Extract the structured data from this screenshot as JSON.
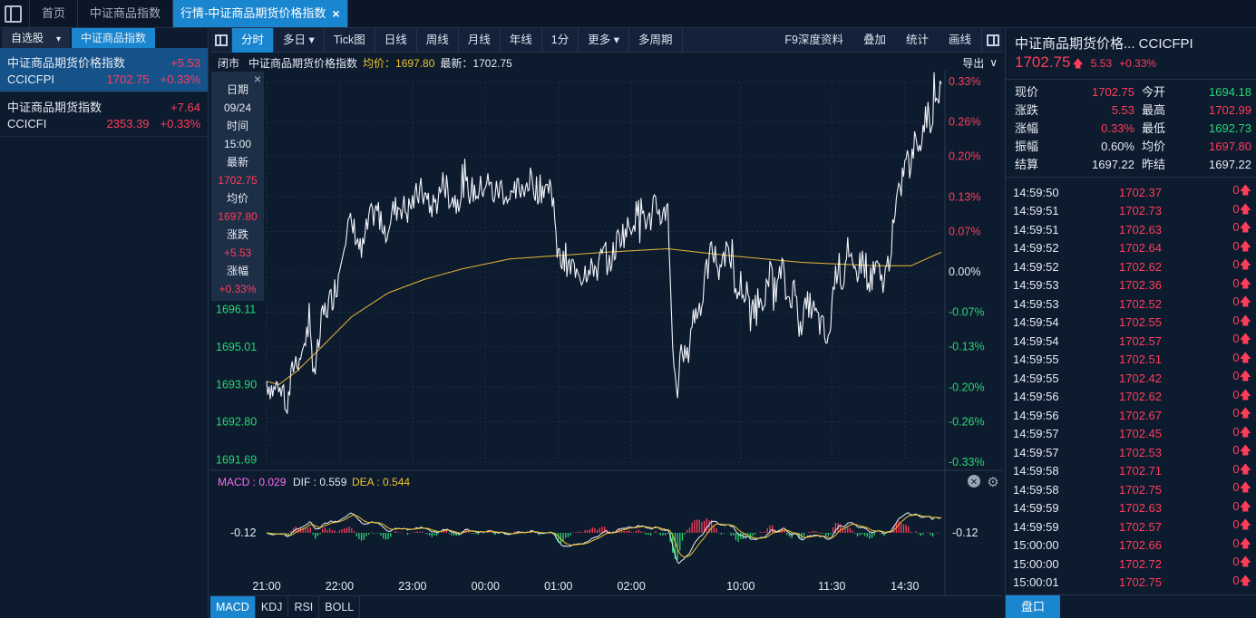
{
  "top_tabs": [
    {
      "label": "首页"
    },
    {
      "label": "中证商品指数"
    },
    {
      "label": "行情-中证商品期货价格指数",
      "close": "×"
    }
  ],
  "left": {
    "tabs": [
      "自选股",
      "中证商品指数"
    ],
    "dropdown": "▾",
    "items": [
      {
        "name": "中证商品期货价格指数",
        "change": "+5.53",
        "code": "CCICFPI",
        "price": "1702.75",
        "pct": "+0.33%"
      },
      {
        "name": "中证商品期货指数",
        "change": "+7.64",
        "code": "CCICFI",
        "price": "2353.39",
        "pct": "+0.33%"
      }
    ]
  },
  "toolbar": {
    "buttons": [
      "分时",
      "多日 ▾",
      "Tick图",
      "日线",
      "周线",
      "月线",
      "年线",
      "1分",
      "更多 ▾",
      "多周期"
    ],
    "right": [
      "F9深度资料",
      "叠加",
      "统计",
      "画线"
    ]
  },
  "infoline": {
    "status": "闭市",
    "name": "中证商品期货价格指数",
    "avg_label": "均价：1697.80",
    "last_label": "最新：1702.75",
    "export": "导出",
    "export_icon": "∨"
  },
  "tooltip": {
    "close": "×",
    "rows": [
      {
        "label": "日期",
        "value": "09/24",
        "cls": "wht"
      },
      {
        "label": "时间",
        "value": "15:00",
        "cls": "wht"
      },
      {
        "label": "最新",
        "value": "1702.75",
        "cls": "up"
      },
      {
        "label": "均价",
        "value": "1697.80",
        "cls": "up"
      },
      {
        "label": "涨跌",
        "value": "+5.53",
        "cls": "up"
      },
      {
        "label": "涨幅",
        "value": "+0.33%",
        "cls": "up"
      }
    ]
  },
  "chart_data": {
    "type": "line",
    "title": "",
    "prev_close": 1697.22,
    "left_axis_ticks": [
      {
        "label": "1696.11",
        "value": 1696.11
      },
      {
        "label": "1695.01",
        "value": 1695.01
      },
      {
        "label": "1693.90",
        "value": 1693.9
      },
      {
        "label": "1692.80",
        "value": 1692.8
      },
      {
        "label": "1691.69",
        "value": 1691.69
      }
    ],
    "right_axis_ticks": [
      {
        "label": "0.33%",
        "value": 0.33
      },
      {
        "label": "0.26%",
        "value": 0.26
      },
      {
        "label": "0.20%",
        "value": 0.2
      },
      {
        "label": "0.13%",
        "value": 0.13
      },
      {
        "label": "0.07%",
        "value": 0.07
      },
      {
        "label": "0.00%",
        "value": 0
      },
      {
        "label": "-0.07%",
        "value": -0.07
      },
      {
        "label": "-0.13%",
        "value": -0.13
      },
      {
        "label": "-0.20%",
        "value": -0.2
      },
      {
        "label": "-0.26%",
        "value": -0.26
      },
      {
        "label": "-0.33%",
        "value": -0.33
      }
    ],
    "x_ticks": [
      "21:00",
      "22:00",
      "23:00",
      "00:00",
      "01:00",
      "02:00",
      "10:00",
      "11:30",
      "14:30"
    ],
    "x_tick_index": [
      0,
      60,
      120,
      180,
      240,
      300,
      390,
      465,
      525
    ],
    "n_points": 556,
    "ylim_pct": [
      -0.33,
      0.33
    ],
    "price_keys": [
      [
        0,
        1694.0
      ],
      [
        6,
        1693.7
      ],
      [
        12,
        1694.1
      ],
      [
        17,
        1693.2
      ],
      [
        22,
        1694.5
      ],
      [
        28,
        1694.8
      ],
      [
        34,
        1695.5
      ],
      [
        40,
        1694.3
      ],
      [
        46,
        1695.9
      ],
      [
        53,
        1696.4
      ],
      [
        58,
        1696.9
      ],
      [
        61,
        1697.6
      ],
      [
        63,
        1698.2
      ],
      [
        68,
        1698.6
      ],
      [
        73,
        1698.4
      ],
      [
        78,
        1697.7
      ],
      [
        84,
        1698.7
      ],
      [
        91,
        1699.0
      ],
      [
        98,
        1698.5
      ],
      [
        104,
        1699.0
      ],
      [
        110,
        1699.2
      ],
      [
        116,
        1699.0
      ],
      [
        122,
        1699.4
      ],
      [
        128,
        1699.6
      ],
      [
        134,
        1699.1
      ],
      [
        140,
        1699.3
      ],
      [
        146,
        1699.9
      ],
      [
        150,
        1699.5
      ],
      [
        156,
        1699.3
      ],
      [
        162,
        1699.7
      ],
      [
        168,
        1699.6
      ],
      [
        175,
        1699.6
      ],
      [
        181,
        1699.9
      ],
      [
        187,
        1699.5
      ],
      [
        193,
        1699.7
      ],
      [
        200,
        1699.3
      ],
      [
        206,
        1699.6
      ],
      [
        212,
        1699.8
      ],
      [
        218,
        1699.9
      ],
      [
        224,
        1699.6
      ],
      [
        230,
        1699.8
      ],
      [
        236,
        1699.4
      ],
      [
        238,
        1698.0
      ],
      [
        242,
        1697.5
      ],
      [
        248,
        1697.3
      ],
      [
        254,
        1697.4
      ],
      [
        260,
        1697.1
      ],
      [
        266,
        1697.5
      ],
      [
        272,
        1697.3
      ],
      [
        278,
        1697.8
      ],
      [
        284,
        1697.6
      ],
      [
        290,
        1698.3
      ],
      [
        296,
        1698.4
      ],
      [
        302,
        1698.8
      ],
      [
        308,
        1699.1
      ],
      [
        314,
        1698.6
      ],
      [
        320,
        1699.2
      ],
      [
        326,
        1698.8
      ],
      [
        330,
        1699.3
      ],
      [
        332,
        1697.2
      ],
      [
        334,
        1694.8
      ],
      [
        338,
        1693.8
      ],
      [
        342,
        1695.0
      ],
      [
        346,
        1694.6
      ],
      [
        350,
        1695.8
      ],
      [
        356,
        1696.2
      ],
      [
        360,
        1696.8
      ],
      [
        366,
        1697.9
      ],
      [
        372,
        1697.4
      ],
      [
        378,
        1698.0
      ],
      [
        384,
        1697.5
      ],
      [
        386,
        1696.4
      ],
      [
        390,
        1696.9
      ],
      [
        396,
        1696.2
      ],
      [
        402,
        1696.3
      ],
      [
        408,
        1696.5
      ],
      [
        414,
        1697.1
      ],
      [
        420,
        1696.7
      ],
      [
        424,
        1697.4
      ],
      [
        428,
        1696.4
      ],
      [
        434,
        1696.7
      ],
      [
        440,
        1695.8
      ],
      [
        446,
        1696.3
      ],
      [
        452,
        1695.9
      ],
      [
        458,
        1695.5
      ],
      [
        462,
        1695.0
      ],
      [
        466,
        1696.7
      ],
      [
        470,
        1697.5
      ],
      [
        474,
        1696.9
      ],
      [
        478,
        1698.0
      ],
      [
        482,
        1697.1
      ],
      [
        486,
        1697.3
      ],
      [
        490,
        1697.6
      ],
      [
        496,
        1696.9
      ],
      [
        502,
        1697.3
      ],
      [
        506,
        1696.9
      ],
      [
        510,
        1697.2
      ],
      [
        514,
        1698.1
      ],
      [
        518,
        1699.0
      ],
      [
        522,
        1699.8
      ],
      [
        526,
        1700.6
      ],
      [
        530,
        1700.2
      ],
      [
        534,
        1701.3
      ],
      [
        538,
        1701.0
      ],
      [
        542,
        1701.9
      ],
      [
        546,
        1701.7
      ],
      [
        550,
        1702.0
      ],
      [
        555,
        1702.75
      ]
    ],
    "avg_keys": [
      [
        0,
        1694.0
      ],
      [
        10,
        1693.9
      ],
      [
        25,
        1694.3
      ],
      [
        45,
        1695.0
      ],
      [
        70,
        1695.9
      ],
      [
        100,
        1696.6
      ],
      [
        130,
        1697.0
      ],
      [
        160,
        1697.3
      ],
      [
        200,
        1697.6
      ],
      [
        240,
        1697.7
      ],
      [
        280,
        1697.8
      ],
      [
        330,
        1697.9
      ],
      [
        380,
        1697.7
      ],
      [
        440,
        1697.5
      ],
      [
        500,
        1697.4
      ],
      [
        530,
        1697.4
      ],
      [
        555,
        1697.8
      ]
    ]
  },
  "macd": {
    "label": "MACD : 0.029",
    "dif_label": "DIF : 0.559",
    "dea_label": "DEA : 0.544",
    "axis_left": "-0.12",
    "axis_right": "-0.12",
    "close_icon": "✕",
    "gear_icon": "⚙",
    "colors": {
      "macd": "#ff6cf0",
      "dif": "#e6ecf3",
      "dea": "#f0c42c",
      "up": "#ff3d5b",
      "down": "#2bd676"
    }
  },
  "indicator_tabs": [
    "MACD",
    "KDJ",
    "RSI",
    "BOLL"
  ],
  "right": {
    "title": "中证商品期货价格... CCICFPI",
    "price": "1702.75",
    "arrow": "🡅",
    "change": "5.53",
    "pct": "+0.33%",
    "quote": [
      {
        "l1": "现价",
        "v1": "1702.75",
        "c1": "up",
        "l2": "今开",
        "v2": "1694.18",
        "c2": "down"
      },
      {
        "l1": "涨跌",
        "v1": "5.53",
        "c1": "up",
        "l2": "最高",
        "v2": "1702.99",
        "c2": "up"
      },
      {
        "l1": "涨幅",
        "v1": "0.33%",
        "c1": "up",
        "l2": "最低",
        "v2": "1692.73",
        "c2": "down"
      },
      {
        "l1": "振幅",
        "v1": "0.60%",
        "c1": "wht",
        "l2": "均价",
        "v2": "1697.80",
        "c2": "up"
      },
      {
        "l1": "结算",
        "v1": "1697.22",
        "c1": "wht",
        "l2": "昨结",
        "v2": "1697.22",
        "c2": "wht"
      }
    ],
    "ticks": [
      {
        "t": "14:59:50",
        "p": "1702.37",
        "v": "0"
      },
      {
        "t": "14:59:51",
        "p": "1702.73",
        "v": "0"
      },
      {
        "t": "14:59:51",
        "p": "1702.63",
        "v": "0"
      },
      {
        "t": "14:59:52",
        "p": "1702.64",
        "v": "0"
      },
      {
        "t": "14:59:52",
        "p": "1702.62",
        "v": "0"
      },
      {
        "t": "14:59:53",
        "p": "1702.36",
        "v": "0"
      },
      {
        "t": "14:59:53",
        "p": "1702.52",
        "v": "0"
      },
      {
        "t": "14:59:54",
        "p": "1702.55",
        "v": "0"
      },
      {
        "t": "14:59:54",
        "p": "1702.57",
        "v": "0"
      },
      {
        "t": "14:59:55",
        "p": "1702.51",
        "v": "0"
      },
      {
        "t": "14:59:55",
        "p": "1702.42",
        "v": "0"
      },
      {
        "t": "14:59:56",
        "p": "1702.62",
        "v": "0"
      },
      {
        "t": "14:59:56",
        "p": "1702.67",
        "v": "0"
      },
      {
        "t": "14:59:57",
        "p": "1702.45",
        "v": "0"
      },
      {
        "t": "14:59:57",
        "p": "1702.53",
        "v": "0"
      },
      {
        "t": "14:59:58",
        "p": "1702.71",
        "v": "0"
      },
      {
        "t": "14:59:58",
        "p": "1702.75",
        "v": "0"
      },
      {
        "t": "14:59:59",
        "p": "1702.63",
        "v": "0"
      },
      {
        "t": "14:59:59",
        "p": "1702.57",
        "v": "0"
      },
      {
        "t": "15:00:00",
        "p": "1702.66",
        "v": "0"
      },
      {
        "t": "15:00:00",
        "p": "1702.72",
        "v": "0"
      },
      {
        "t": "15:00:01",
        "p": "1702.75",
        "v": "0"
      }
    ],
    "tick_arrow": "🡅",
    "pankou": "盘口"
  }
}
